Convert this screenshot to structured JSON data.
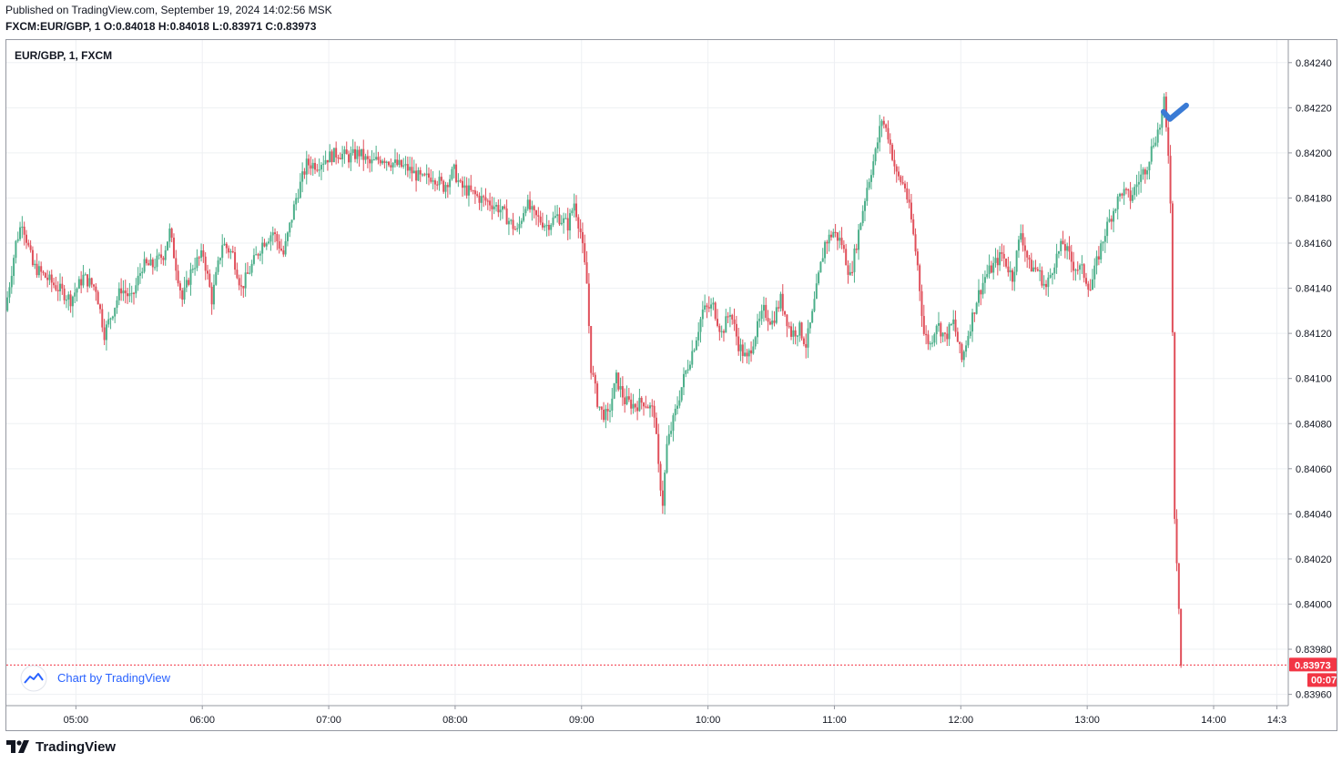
{
  "header": {
    "published": "Published on TradingView.com, September 19, 2024 14:02:56 MSK",
    "symbol": "FXCM:EUR/GBP, 1",
    "o_label": "O:",
    "o_value": "0.84018",
    "h_label": "H:",
    "h_value": "0.84018",
    "l_label": "L:",
    "l_value": "0.83971",
    "c_label": "C:",
    "c_value": "0.83973"
  },
  "pane": {
    "legend": "EUR/GBP, 1, FXCM",
    "watermark": "Chart by TradingView",
    "last_price": "0.83973",
    "countdown": "00:07"
  },
  "footer": {
    "brand": "TradingView"
  },
  "colors": {
    "up": "#26a69a",
    "down": "#ef5350",
    "up_candle": "#4caf8a",
    "down_candle": "#e04f5a",
    "grid": "#eef0f3",
    "axis_text": "#131722",
    "price_label_bg": "#f23645",
    "watermark_text": "#2962ff",
    "marker": "#3a7bd5"
  },
  "chart_data": {
    "type": "candlestick",
    "symbol": "EUR/GBP",
    "interval": "1",
    "y_ticks": [
      0.8424,
      0.8422,
      0.842,
      0.8418,
      0.8416,
      0.8414,
      0.8412,
      0.841,
      0.8408,
      0.8406,
      0.8404,
      0.8402,
      0.84,
      0.8398,
      0.8396
    ],
    "y_tick_labels": [
      "0.84240",
      "0.84220",
      "0.84200",
      "0.84180",
      "0.84160",
      "0.84140",
      "0.84120",
      "0.84100",
      "0.84080",
      "0.84060",
      "0.84040",
      "0.84020",
      "0.84000",
      "0.83980",
      "0.83960"
    ],
    "x_tick_labels": [
      "05:00",
      "06:00",
      "07:00",
      "08:00",
      "09:00",
      "10:00",
      "11:00",
      "12:00",
      "13:00",
      "14:00",
      "14:3"
    ],
    "x_tick_minutes": [
      300,
      360,
      420,
      480,
      540,
      600,
      660,
      720,
      780,
      840,
      870
    ],
    "x_range": [
      267,
      875
    ],
    "ylim": [
      0.83955,
      0.8425
    ],
    "grid": true,
    "last_price": 0.83973,
    "path_keypoints": [
      [
        267,
        0.8413
      ],
      [
        272,
        0.8416
      ],
      [
        275,
        0.8417
      ],
      [
        280,
        0.8415
      ],
      [
        286,
        0.84145
      ],
      [
        292,
        0.8414
      ],
      [
        298,
        0.84135
      ],
      [
        304,
        0.84145
      ],
      [
        310,
        0.8414
      ],
      [
        314,
        0.8412
      ],
      [
        318,
        0.8413
      ],
      [
        322,
        0.8414
      ],
      [
        327,
        0.84135
      ],
      [
        332,
        0.8415
      ],
      [
        337,
        0.8415
      ],
      [
        342,
        0.84155
      ],
      [
        345,
        0.84165
      ],
      [
        348,
        0.8415
      ],
      [
        351,
        0.84135
      ],
      [
        356,
        0.8415
      ],
      [
        361,
        0.84155
      ],
      [
        365,
        0.84135
      ],
      [
        370,
        0.8416
      ],
      [
        375,
        0.84155
      ],
      [
        379,
        0.8414
      ],
      [
        384,
        0.8415
      ],
      [
        389,
        0.8416
      ],
      [
        394,
        0.84165
      ],
      [
        399,
        0.84155
      ],
      [
        405,
        0.8418
      ],
      [
        410,
        0.84195
      ],
      [
        415,
        0.84195
      ],
      [
        420,
        0.84198
      ],
      [
        425,
        0.842
      ],
      [
        430,
        0.84198
      ],
      [
        435,
        0.842
      ],
      [
        440,
        0.84195
      ],
      [
        446,
        0.84198
      ],
      [
        452,
        0.84195
      ],
      [
        458,
        0.84193
      ],
      [
        465,
        0.84188
      ],
      [
        470,
        0.8419
      ],
      [
        475,
        0.84185
      ],
      [
        480,
        0.84192
      ],
      [
        483,
        0.84185
      ],
      [
        487,
        0.84183
      ],
      [
        492,
        0.8418
      ],
      [
        497,
        0.84178
      ],
      [
        502,
        0.84175
      ],
      [
        506,
        0.8417
      ],
      [
        510,
        0.84165
      ],
      [
        514,
        0.84178
      ],
      [
        518,
        0.84172
      ],
      [
        524,
        0.84168
      ],
      [
        529,
        0.84172
      ],
      [
        534,
        0.84168
      ],
      [
        537,
        0.84178
      ],
      [
        540,
        0.84165
      ],
      [
        543,
        0.84142
      ],
      [
        545,
        0.84105
      ],
      [
        548,
        0.8409
      ],
      [
        550,
        0.84085
      ],
      [
        553,
        0.84083
      ],
      [
        557,
        0.841
      ],
      [
        561,
        0.8409
      ],
      [
        566,
        0.84088
      ],
      [
        570,
        0.8409
      ],
      [
        575,
        0.84085
      ],
      [
        577,
        0.8406
      ],
      [
        579,
        0.84045
      ],
      [
        581,
        0.8407
      ],
      [
        585,
        0.84085
      ],
      [
        589,
        0.841
      ],
      [
        594,
        0.84115
      ],
      [
        598,
        0.8413
      ],
      [
        603,
        0.84132
      ],
      [
        607,
        0.8412
      ],
      [
        611,
        0.8413
      ],
      [
        615,
        0.84115
      ],
      [
        619,
        0.84108
      ],
      [
        623,
        0.8412
      ],
      [
        627,
        0.8413
      ],
      [
        631,
        0.84125
      ],
      [
        635,
        0.84135
      ],
      [
        640,
        0.8412
      ],
      [
        644,
        0.84122
      ],
      [
        647,
        0.84115
      ],
      [
        650,
        0.84128
      ],
      [
        653,
        0.84145
      ],
      [
        656,
        0.8416
      ],
      [
        660,
        0.84165
      ],
      [
        664,
        0.8416
      ],
      [
        668,
        0.84145
      ],
      [
        672,
        0.84165
      ],
      [
        676,
        0.84185
      ],
      [
        680,
        0.842
      ],
      [
        683,
        0.84215
      ],
      [
        686,
        0.84208
      ],
      [
        690,
        0.8419
      ],
      [
        694,
        0.84185
      ],
      [
        697,
        0.8417
      ],
      [
        700,
        0.8415
      ],
      [
        703,
        0.8412
      ],
      [
        706,
        0.84115
      ],
      [
        709,
        0.84125
      ],
      [
        713,
        0.84118
      ],
      [
        717,
        0.84125
      ],
      [
        721,
        0.84108
      ],
      [
        724,
        0.8412
      ],
      [
        728,
        0.84135
      ],
      [
        732,
        0.84145
      ],
      [
        736,
        0.8415
      ],
      [
        740,
        0.84155
      ],
      [
        745,
        0.84145
      ],
      [
        749,
        0.84165
      ],
      [
        753,
        0.8415
      ],
      [
        757,
        0.84148
      ],
      [
        761,
        0.8414
      ],
      [
        765,
        0.84152
      ],
      [
        769,
        0.8416
      ],
      [
        774,
        0.8415
      ],
      [
        778,
        0.84148
      ],
      [
        782,
        0.8414
      ],
      [
        786,
        0.84155
      ],
      [
        789,
        0.84165
      ],
      [
        793,
        0.84175
      ],
      [
        797,
        0.84183
      ],
      [
        801,
        0.8418
      ],
      [
        805,
        0.84188
      ],
      [
        809,
        0.84195
      ],
      [
        812,
        0.84205
      ],
      [
        815,
        0.84212
      ],
      [
        817,
        0.84222
      ],
      [
        818,
        0.8421
      ],
      [
        819,
        0.842
      ],
      [
        820,
        0.8418
      ],
      [
        821,
        0.8412
      ],
      [
        822,
        0.8404
      ],
      [
        823,
        0.8402
      ],
      [
        824,
        0.84
      ],
      [
        825,
        0.83973
      ]
    ]
  }
}
